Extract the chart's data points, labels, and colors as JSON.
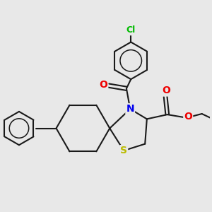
{
  "background_color": "#e8e8e8",
  "bond_color": "#1a1a1a",
  "bond_width": 1.5,
  "atom_colors": {
    "N": "#0000ee",
    "O": "#ee0000",
    "S": "#bbbb00",
    "Cl": "#00bb00"
  },
  "figsize": [
    3.0,
    3.0
  ],
  "dpi": 100,
  "xlim": [
    -2.8,
    2.8
  ],
  "ylim": [
    -2.2,
    2.8
  ]
}
